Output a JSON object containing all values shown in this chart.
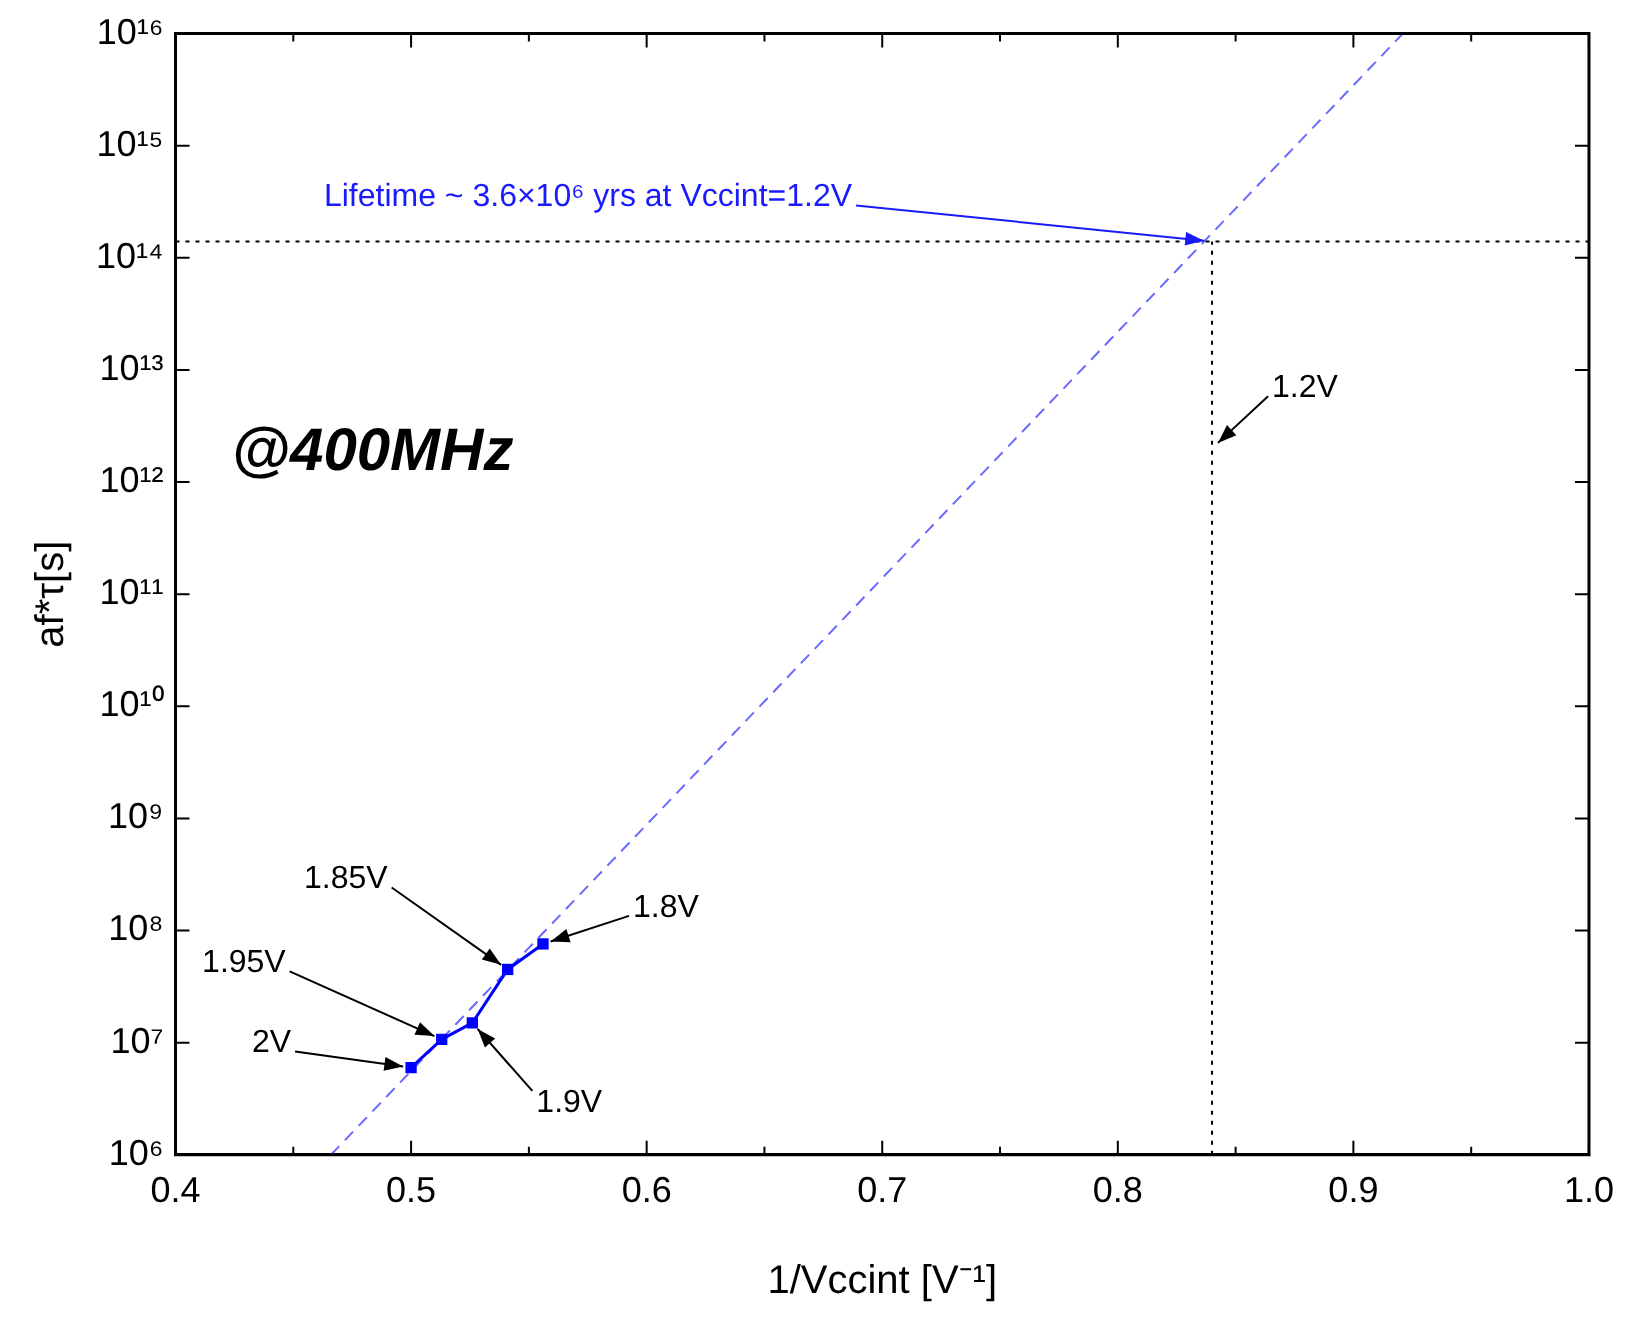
{
  "chart_data": {
    "type": "line",
    "xlabel": "1/Vccint [V⁻¹]",
    "ylabel": "af*τ[s]",
    "xlim": [
      0.4,
      1.0
    ],
    "xticks": [
      0.4,
      {
        "value": 0.45,
        "label": null
      },
      0.5,
      {
        "value": 0.55,
        "label": null
      },
      0.6,
      {
        "value": 0.65,
        "label": null
      },
      0.7,
      {
        "value": 0.75,
        "label": null
      },
      0.8,
      {
        "value": 0.85,
        "label": null
      },
      0.9,
      {
        "value": 0.95,
        "label": null
      },
      {
        "value": 1,
        "label": "1.0"
      }
    ],
    "ylim": [
      1000000.0,
      1e+16
    ],
    "yticks": [
      {
        "value": 1000000.0,
        "label": "10⁶"
      },
      {
        "value": 10000000.0,
        "label": "10⁷"
      },
      {
        "value": 100000000.0,
        "label": "10⁸"
      },
      {
        "value": 1000000000.0,
        "label": "10⁹"
      },
      {
        "value": 10000000000.0,
        "label": "10¹⁰"
      },
      {
        "value": 100000000000.0,
        "label": "10¹¹"
      },
      {
        "value": 1000000000000.0,
        "label": "10¹²"
      },
      {
        "value": 10000000000000.0,
        "label": "10¹³"
      },
      {
        "value": 100000000000000.0,
        "label": "10¹⁴"
      },
      {
        "value": 1000000000000000.0,
        "label": "10¹⁵"
      },
      {
        "value": 1e+16,
        "label": "10¹⁶"
      }
    ],
    "log": "y",
    "grid": false,
    "legend": false,
    "series": [
      {
        "type": "line",
        "color": "#0000ff",
        "marker": "square",
        "line_style": "solid",
        "x": [
          0.5,
          0.513,
          0.526,
          0.541,
          0.556
        ],
        "values": [
          6000000.0,
          10700000.0,
          15000000.0,
          45000000.0,
          76000000.0
        ]
      },
      {
        "type": "line",
        "color": "#6a6aff",
        "marker": "none",
        "line_style": "dashed",
        "x": [
          0.466,
          0.921
        ],
        "values": [
          1000000.0,
          1e+16
        ]
      }
    ],
    "ref_lines": [
      {
        "axis": "y",
        "value": 140000000000000.0,
        "color": "#000000",
        "line_style": "dotted"
      },
      {
        "axis": "x",
        "value": 0.84,
        "color": "#000000",
        "line_style": "dotted"
      }
    ],
    "annotations": [
      "@400MHz",
      {
        "text": "Lifetime ~ 3.6×10⁶ yrs at Vccint=1.2V",
        "x": 0.84,
        "y": 140000000000000.0
      },
      {
        "text": "1.2V",
        "x": 0.84,
        "y": 2000000000000.0
      },
      {
        "text": "2V",
        "x": 0.5,
        "y": 6000000.0
      },
      {
        "text": "1.95V",
        "x": 0.513,
        "y": 10700000.0
      },
      {
        "text": "1.9V",
        "x": 0.526,
        "y": 15000000.0
      },
      {
        "text": "1.85V",
        "x": 0.541,
        "y": 45000000.0
      },
      {
        "text": "1.8V",
        "x": 0.556,
        "y": 76000000.0
      }
    ]
  }
}
